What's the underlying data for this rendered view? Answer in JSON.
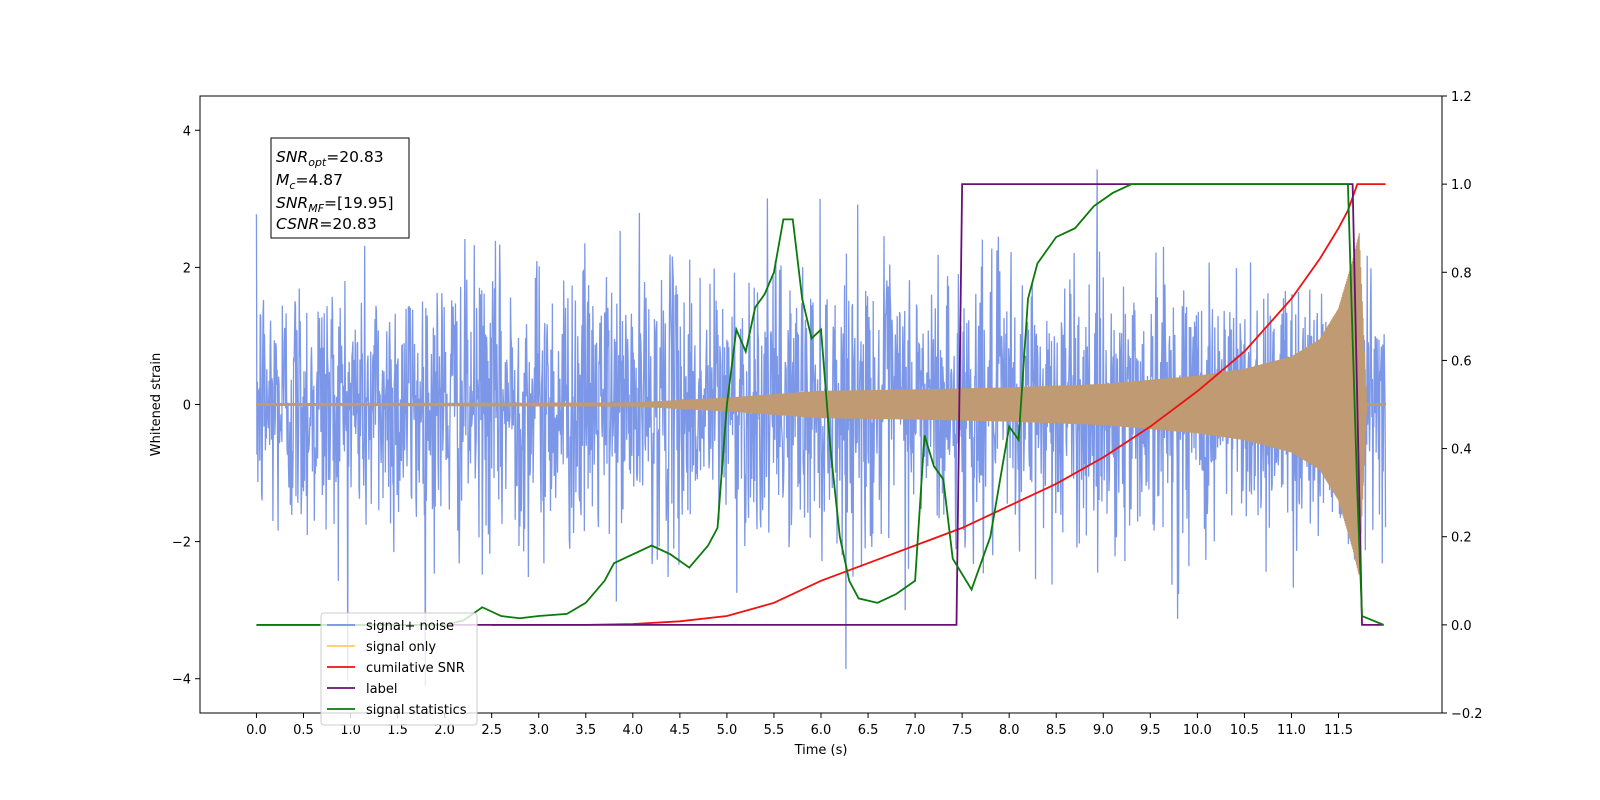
{
  "chart_data": {
    "type": "line",
    "xlabel": "Time (s)",
    "ylabel": "Whitened strain",
    "xlim": [
      -0.6,
      12.6
    ],
    "ylim": [
      -4.5,
      4.5
    ],
    "y2lim": [
      -0.2,
      1.2
    ],
    "x_ticks": [
      "0.0",
      "0.5",
      "1.0",
      "1.5",
      "2.0",
      "2.5",
      "3.0",
      "3.5",
      "4.0",
      "4.5",
      "5.0",
      "5.5",
      "6.0",
      "6.5",
      "7.0",
      "7.5",
      "8.0",
      "8.5",
      "9.0",
      "9.5",
      "10.0",
      "10.5",
      "11.0",
      "11.5"
    ],
    "y_ticks": [
      "4",
      "2",
      "0",
      "−2",
      "−4"
    ],
    "y2_ticks": [
      "1.2",
      "1.0",
      "0.8",
      "0.6",
      "0.4",
      "0.2",
      "0.0",
      "−0.2"
    ],
    "grid": false,
    "legend_placement": "lower-left",
    "annotation": {
      "snr_opt": {
        "sym": "SNR",
        "sub": "opt",
        "val": "=20.83"
      },
      "mc": {
        "sym": "M",
        "sub": "c",
        "val": "=4.87"
      },
      "snr_mf": {
        "sym": "SNR",
        "sub": "MF",
        "val": "=[19.95]"
      },
      "csnr": {
        "sym": "CSNR",
        "val": "=20.83"
      }
    },
    "series": [
      {
        "name": "signal+ noise",
        "color": "#7591e6",
        "axis": "left",
        "t_range": [
          0,
          12.0
        ],
        "noise_std": 1.0,
        "noise_peak": 4.1
      },
      {
        "name": "signal only",
        "color": "#bf9a72",
        "axis": "left",
        "t_range": [
          0,
          12.0
        ],
        "envelope": [
          [
            0,
            0.02
          ],
          [
            4,
            0.03
          ],
          [
            5,
            0.1
          ],
          [
            6,
            0.2
          ],
          [
            7,
            0.22
          ],
          [
            8,
            0.25
          ],
          [
            9,
            0.3
          ],
          [
            10,
            0.42
          ],
          [
            10.5,
            0.52
          ],
          [
            11,
            0.7
          ],
          [
            11.3,
            0.95
          ],
          [
            11.5,
            1.4
          ],
          [
            11.65,
            2.1
          ],
          [
            11.72,
            2.5
          ],
          [
            11.8,
            0.02
          ],
          [
            12,
            0.02
          ]
        ]
      },
      {
        "name": "cumilative SNR",
        "color": "#ee1111",
        "axis": "right",
        "points": [
          [
            2.5,
            0
          ],
          [
            3.5,
            0
          ],
          [
            4.0,
            0.002
          ],
          [
            4.5,
            0.008
          ],
          [
            5.0,
            0.02
          ],
          [
            5.5,
            0.05
          ],
          [
            6.0,
            0.1
          ],
          [
            6.5,
            0.14
          ],
          [
            7.0,
            0.18
          ],
          [
            7.5,
            0.22
          ],
          [
            8.0,
            0.27
          ],
          [
            8.5,
            0.32
          ],
          [
            9.0,
            0.38
          ],
          [
            9.5,
            0.45
          ],
          [
            10.0,
            0.53
          ],
          [
            10.5,
            0.62
          ],
          [
            11.0,
            0.74
          ],
          [
            11.3,
            0.83
          ],
          [
            11.5,
            0.9
          ],
          [
            11.6,
            0.94
          ],
          [
            11.7,
            1.0
          ],
          [
            12.0,
            1.0
          ]
        ]
      },
      {
        "name": "label",
        "color": "#6b0f73",
        "axis": "right",
        "points": [
          [
            0,
            0
          ],
          [
            7.44,
            0
          ],
          [
            7.5,
            1.0
          ],
          [
            11.65,
            1.0
          ],
          [
            11.75,
            0
          ],
          [
            11.98,
            0
          ]
        ]
      },
      {
        "name": "signal statistics",
        "color": "#0a7a0a",
        "axis": "right",
        "points": [
          [
            0,
            0
          ],
          [
            2.0,
            0
          ],
          [
            2.2,
            0.01
          ],
          [
            2.4,
            0.04
          ],
          [
            2.6,
            0.02
          ],
          [
            2.8,
            0.015
          ],
          [
            3.0,
            0.02
          ],
          [
            3.3,
            0.025
          ],
          [
            3.5,
            0.05
          ],
          [
            3.7,
            0.1
          ],
          [
            3.8,
            0.14
          ],
          [
            4.0,
            0.16
          ],
          [
            4.2,
            0.18
          ],
          [
            4.4,
            0.16
          ],
          [
            4.6,
            0.13
          ],
          [
            4.8,
            0.18
          ],
          [
            4.9,
            0.22
          ],
          [
            5.0,
            0.5
          ],
          [
            5.1,
            0.67
          ],
          [
            5.2,
            0.62
          ],
          [
            5.3,
            0.72
          ],
          [
            5.4,
            0.75
          ],
          [
            5.5,
            0.8
          ],
          [
            5.6,
            0.92
          ],
          [
            5.7,
            0.92
          ],
          [
            5.8,
            0.74
          ],
          [
            5.9,
            0.65
          ],
          [
            6.0,
            0.67
          ],
          [
            6.1,
            0.4
          ],
          [
            6.2,
            0.2
          ],
          [
            6.3,
            0.1
          ],
          [
            6.4,
            0.06
          ],
          [
            6.6,
            0.05
          ],
          [
            6.8,
            0.07
          ],
          [
            7.0,
            0.1
          ],
          [
            7.1,
            0.43
          ],
          [
            7.2,
            0.36
          ],
          [
            7.3,
            0.33
          ],
          [
            7.4,
            0.15
          ],
          [
            7.6,
            0.08
          ],
          [
            7.8,
            0.2
          ],
          [
            8.0,
            0.45
          ],
          [
            8.1,
            0.42
          ],
          [
            8.2,
            0.74
          ],
          [
            8.3,
            0.82
          ],
          [
            8.5,
            0.88
          ],
          [
            8.7,
            0.9
          ],
          [
            8.9,
            0.95
          ],
          [
            9.1,
            0.98
          ],
          [
            9.3,
            1.0
          ],
          [
            11.6,
            1.0
          ],
          [
            11.7,
            0.3
          ],
          [
            11.75,
            0.02
          ],
          [
            11.98,
            0
          ]
        ]
      }
    ]
  }
}
